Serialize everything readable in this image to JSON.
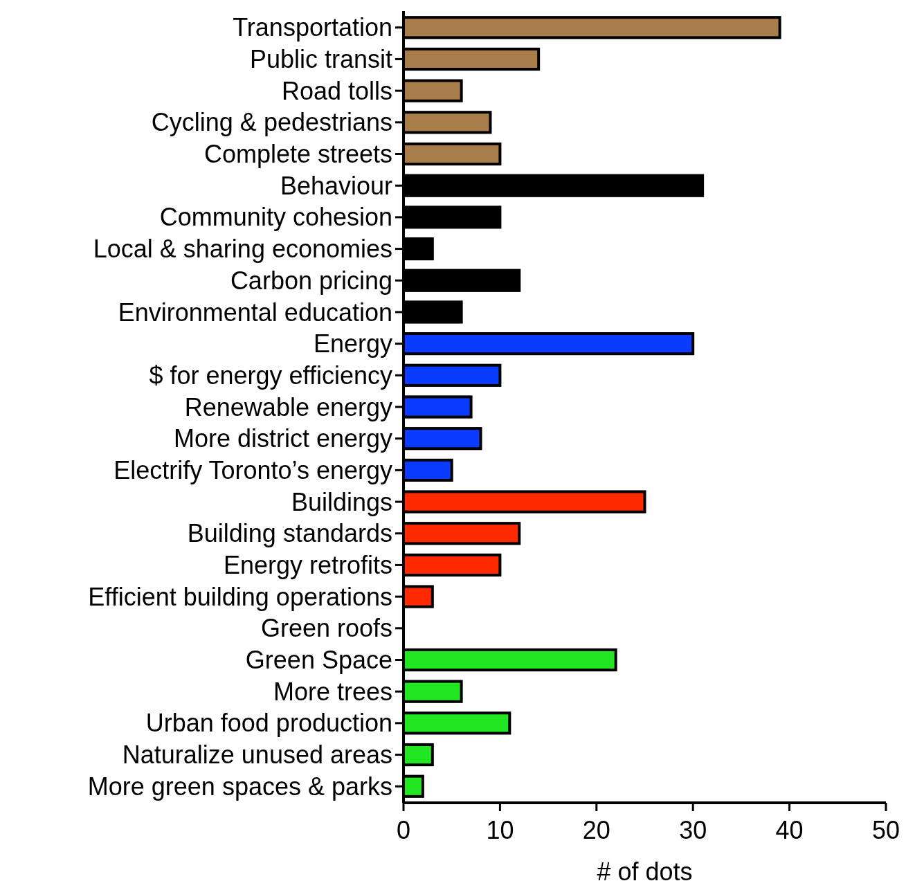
{
  "chart_data": {
    "type": "bar",
    "orientation": "horizontal",
    "xlabel": "# of dots",
    "categories": [
      "Transportation",
      "Public transit",
      "Road tolls",
      "Cycling & pedestrians",
      "Complete streets",
      "Behaviour",
      "Community cohesion",
      "Local & sharing economies",
      "Carbon pricing",
      "Environmental education",
      "Energy",
      "$ for energy efficiency",
      "Renewable energy",
      "More district energy",
      "Electrify Toronto’s energy",
      "Buildings",
      "Building standards",
      "Energy retrofits",
      "Efficient building operations",
      "Green roofs",
      "Green Space",
      "More trees",
      "Urban food production",
      "Naturalize unused areas",
      "More green spaces & parks"
    ],
    "values": [
      39,
      14,
      6,
      9,
      10,
      31,
      10,
      3,
      12,
      6,
      30,
      10,
      7,
      8,
      5,
      25,
      12,
      10,
      3,
      0,
      22,
      6,
      11,
      3,
      2
    ],
    "colors": [
      "#a87d4a",
      "#a87d4a",
      "#a87d4a",
      "#a87d4a",
      "#a87d4a",
      "#000000",
      "#000000",
      "#000000",
      "#000000",
      "#000000",
      "#0a3cff",
      "#0a3cff",
      "#0a3cff",
      "#0a3cff",
      "#0a3cff",
      "#ff2a00",
      "#ff2a00",
      "#ff2a00",
      "#ff2a00",
      "#ff2a00",
      "#22e622",
      "#22e622",
      "#22e622",
      "#22e622",
      "#22e622"
    ],
    "xlim": [
      0,
      50
    ],
    "xticks": [
      0,
      10,
      20,
      30,
      40,
      50
    ],
    "grid": false
  }
}
